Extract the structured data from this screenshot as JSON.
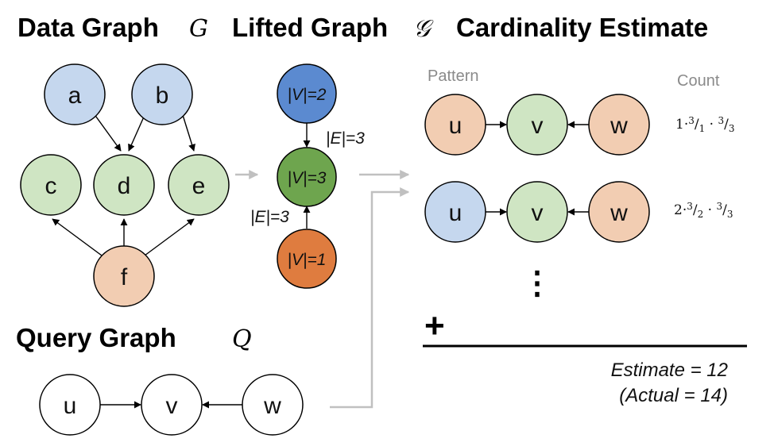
{
  "titles": {
    "data_graph": "Data Graph",
    "data_graph_symbol": "G",
    "lifted_graph": "Lifted Graph",
    "lifted_graph_symbol": "𝒢",
    "cardinality": "Cardinality Estimate",
    "query_graph": "Query Graph",
    "query_graph_symbol": "Q"
  },
  "colors": {
    "blue": "#c5d7ee",
    "green": "#cfe5c3",
    "orange": "#f2cdb2",
    "white": "#ffffff",
    "lifted_blue": "#5b8ad0",
    "lifted_green": "#6ea54e",
    "lifted_orange": "#df7c3f",
    "connector": "#c0c0c0"
  },
  "data_graph": {
    "nodes": {
      "a": {
        "label": "a",
        "color": "blue"
      },
      "b": {
        "label": "b",
        "color": "blue"
      },
      "c": {
        "label": "c",
        "color": "green"
      },
      "d": {
        "label": "d",
        "color": "green"
      },
      "e": {
        "label": "e",
        "color": "green"
      },
      "f": {
        "label": "f",
        "color": "orange"
      }
    },
    "edges": [
      [
        "a",
        "d"
      ],
      [
        "b",
        "d"
      ],
      [
        "b",
        "e"
      ],
      [
        "f",
        "c"
      ],
      [
        "f",
        "d"
      ],
      [
        "f",
        "e"
      ]
    ]
  },
  "lifted_graph": {
    "nodes": {
      "top": {
        "label": "|V|=2",
        "color": "lifted_blue"
      },
      "mid": {
        "label": "|V|=3",
        "color": "lifted_green"
      },
      "bot": {
        "label": "|V|=1",
        "color": "lifted_orange"
      }
    },
    "edge_labels": {
      "upper": "|E|=3",
      "lower": "|E|=3"
    }
  },
  "query_graph": {
    "nodes": [
      "u",
      "v",
      "w"
    ]
  },
  "estimate": {
    "pattern_header": "Pattern",
    "count_header": "Count",
    "patterns": [
      {
        "nodes": [
          {
            "label": "u",
            "color": "orange"
          },
          {
            "label": "v",
            "color": "green"
          },
          {
            "label": "w",
            "color": "orange"
          }
        ],
        "count": {
          "coef": "1",
          "f1_num": "3",
          "f1_den": "1",
          "f2_num": "3",
          "f2_den": "3"
        }
      },
      {
        "nodes": [
          {
            "label": "u",
            "color": "blue"
          },
          {
            "label": "v",
            "color": "green"
          },
          {
            "label": "w",
            "color": "orange"
          }
        ],
        "count": {
          "coef": "2",
          "f1_num": "3",
          "f1_den": "2",
          "f2_num": "3",
          "f2_den": "3"
        }
      }
    ],
    "ellipsis": "⋮",
    "plus": "+",
    "estimate_line": "Estimate = 12",
    "actual_line": "(Actual = 14)"
  }
}
